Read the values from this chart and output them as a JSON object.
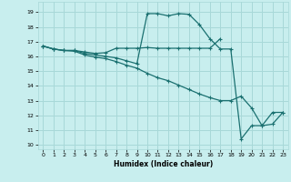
{
  "xlabel": "Humidex (Indice chaleur)",
  "xlim": [
    -0.5,
    23.5
  ],
  "ylim": [
    9.7,
    19.7
  ],
  "yticks": [
    10,
    11,
    12,
    13,
    14,
    15,
    16,
    17,
    18,
    19
  ],
  "xticks": [
    0,
    1,
    2,
    3,
    4,
    5,
    6,
    7,
    8,
    9,
    10,
    11,
    12,
    13,
    14,
    15,
    16,
    17,
    18,
    19,
    20,
    21,
    22,
    23
  ],
  "bg_color": "#c8eeee",
  "grid_color": "#a8d8d8",
  "line_color": "#1a7070",
  "line1_x": [
    0,
    1,
    2,
    3,
    4,
    5,
    6,
    7,
    8,
    9,
    10,
    11,
    12,
    13,
    14,
    15,
    16,
    17
  ],
  "line1_y": [
    16.7,
    16.5,
    16.4,
    16.4,
    16.3,
    16.2,
    16.25,
    16.55,
    16.55,
    16.55,
    16.6,
    16.55,
    16.55,
    16.55,
    16.55,
    16.55,
    16.55,
    17.2
  ],
  "line2_x": [
    0,
    1,
    2,
    3,
    4,
    5,
    6,
    7,
    8,
    9,
    10,
    11,
    12,
    13,
    14,
    15,
    16,
    17,
    18,
    19,
    20,
    21,
    22,
    23
  ],
  "line2_y": [
    16.7,
    16.5,
    16.4,
    16.4,
    16.2,
    16.1,
    16.0,
    15.9,
    15.7,
    15.5,
    18.9,
    18.9,
    18.75,
    18.9,
    18.85,
    18.15,
    17.2,
    16.5,
    16.5,
    10.4,
    11.3,
    11.3,
    12.2,
    12.2
  ],
  "line3_x": [
    0,
    1,
    2,
    3,
    4,
    5,
    6,
    7,
    8,
    9,
    10,
    11,
    12,
    13,
    14,
    15,
    16,
    17,
    18,
    19,
    20,
    21,
    22,
    23
  ],
  "line3_y": [
    16.7,
    16.5,
    16.4,
    16.35,
    16.1,
    15.95,
    15.85,
    15.65,
    15.4,
    15.2,
    14.85,
    14.55,
    14.35,
    14.05,
    13.75,
    13.45,
    13.2,
    13.0,
    13.0,
    13.3,
    12.5,
    11.3,
    11.4,
    12.2
  ]
}
